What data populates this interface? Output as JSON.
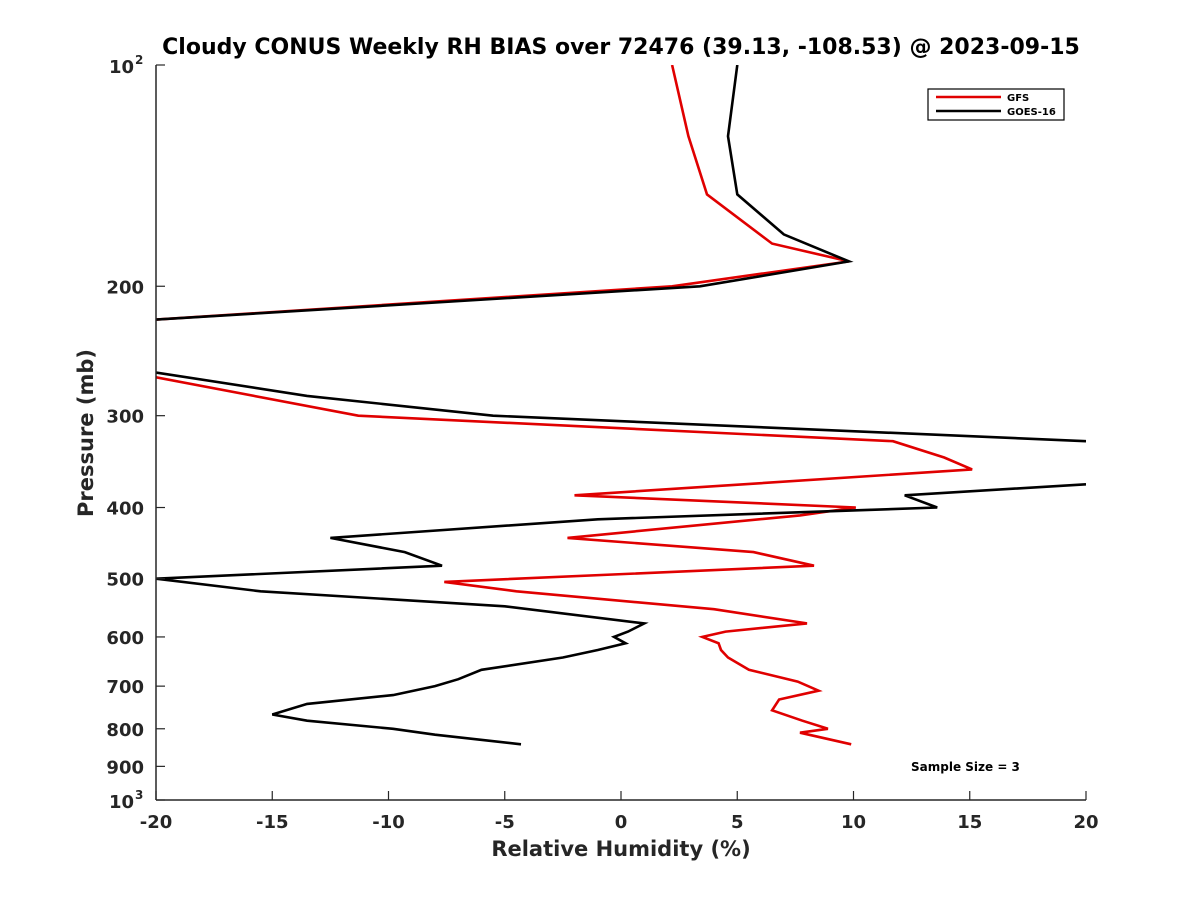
{
  "chart_data": {
    "type": "line",
    "title": "Cloudy CONUS Weekly RH BIAS over 72476 (39.13, -108.53) @ 2023-09-15",
    "xlabel": "Relative Humidity (%)",
    "ylabel": "Pressure (mb)",
    "xlim": [
      -20,
      20
    ],
    "ylim": [
      1000,
      100
    ],
    "y_scale": "log",
    "x_ticks": [
      {
        "value": -20,
        "label": "-20"
      },
      {
        "value": -15,
        "label": "-15"
      },
      {
        "value": -10,
        "label": "-10"
      },
      {
        "value": -5,
        "label": "-5"
      },
      {
        "value": 0,
        "label": "0"
      },
      {
        "value": 5,
        "label": "5"
      },
      {
        "value": 10,
        "label": "10"
      },
      {
        "value": 15,
        "label": "15"
      },
      {
        "value": 20,
        "label": "20"
      }
    ],
    "y_ticks": [
      {
        "value": 100,
        "label": "10",
        "sup": "2"
      },
      {
        "value": 200,
        "label": "200"
      },
      {
        "value": 300,
        "label": "300"
      },
      {
        "value": 400,
        "label": "400"
      },
      {
        "value": 500,
        "label": "500"
      },
      {
        "value": 600,
        "label": "600"
      },
      {
        "value": 700,
        "label": "700"
      },
      {
        "value": 800,
        "label": "800"
      },
      {
        "value": 900,
        "label": "900"
      },
      {
        "value": 1000,
        "label": "10",
        "sup": "3"
      }
    ],
    "grid": false,
    "legend_position": "top-right",
    "series": [
      {
        "name": "GFS",
        "color": "#e00000",
        "segments": [
          [
            [
              2.2,
              100
            ],
            [
              2.9,
              125
            ],
            [
              3.7,
              150
            ],
            [
              6.5,
              175
            ],
            [
              9.8,
              185
            ],
            [
              2.2,
              200
            ],
            [
              -20,
              222
            ]
          ],
          [
            [
              -20,
              266
            ],
            [
              -11.3,
              300
            ],
            [
              11.7,
              325
            ],
            [
              13.9,
              342
            ],
            [
              15.1,
              355
            ],
            [
              -2,
              385
            ],
            [
              10.1,
              400
            ],
            [
              7.7,
              410
            ],
            [
              -2.3,
              440
            ],
            [
              5.7,
              460
            ],
            [
              8.3,
              480
            ],
            [
              -7.6,
              505
            ],
            [
              -4.5,
              520
            ],
            [
              4,
              550
            ],
            [
              8,
              575
            ],
            [
              4.5,
              590
            ],
            [
              3.5,
              600
            ],
            [
              4.2,
              612
            ],
            [
              4.3,
              625
            ],
            [
              4.6,
              640
            ],
            [
              5.5,
              665
            ],
            [
              7.6,
              690
            ],
            [
              8.5,
              710
            ],
            [
              6.8,
              730
            ],
            [
              6.5,
              755
            ],
            [
              7.8,
              780
            ],
            [
              8.9,
              800
            ],
            [
              7.7,
              810
            ],
            [
              9.9,
              840
            ]
          ]
        ]
      },
      {
        "name": "GOES-16",
        "color": "#000000",
        "segments": [
          [
            [
              5,
              100
            ],
            [
              4.6,
              125
            ],
            [
              5,
              150
            ],
            [
              7,
              170
            ],
            [
              9.8,
              185
            ],
            [
              3.4,
              200
            ],
            [
              -20,
              222
            ]
          ],
          [
            [
              -20,
              262
            ],
            [
              -13.5,
              282
            ],
            [
              -5.5,
              300
            ],
            [
              20,
              325
            ]
          ],
          [
            [
              20,
              372
            ],
            [
              12.2,
              385
            ],
            [
              13.6,
              400
            ],
            [
              -1,
              415
            ],
            [
              -12.5,
              440
            ],
            [
              -9.3,
              460
            ],
            [
              -7.7,
              480
            ],
            [
              -20,
              500
            ],
            [
              -15.5,
              520
            ],
            [
              -5,
              545
            ],
            [
              1,
              575
            ],
            [
              0.3,
              590
            ],
            [
              -0.3,
              600
            ],
            [
              0.2,
              612
            ],
            [
              -1,
              625
            ],
            [
              -2.5,
              640
            ],
            [
              -6,
              665
            ],
            [
              -7,
              685
            ],
            [
              -8,
              700
            ],
            [
              -9.8,
              720
            ],
            [
              -13.5,
              740
            ],
            [
              -15,
              765
            ],
            [
              -13.5,
              780
            ],
            [
              -9.8,
              800
            ],
            [
              -8,
              815
            ],
            [
              -4.3,
              840
            ]
          ]
        ]
      }
    ],
    "annotations": [
      {
        "text": "Sample Size = 3"
      }
    ]
  }
}
